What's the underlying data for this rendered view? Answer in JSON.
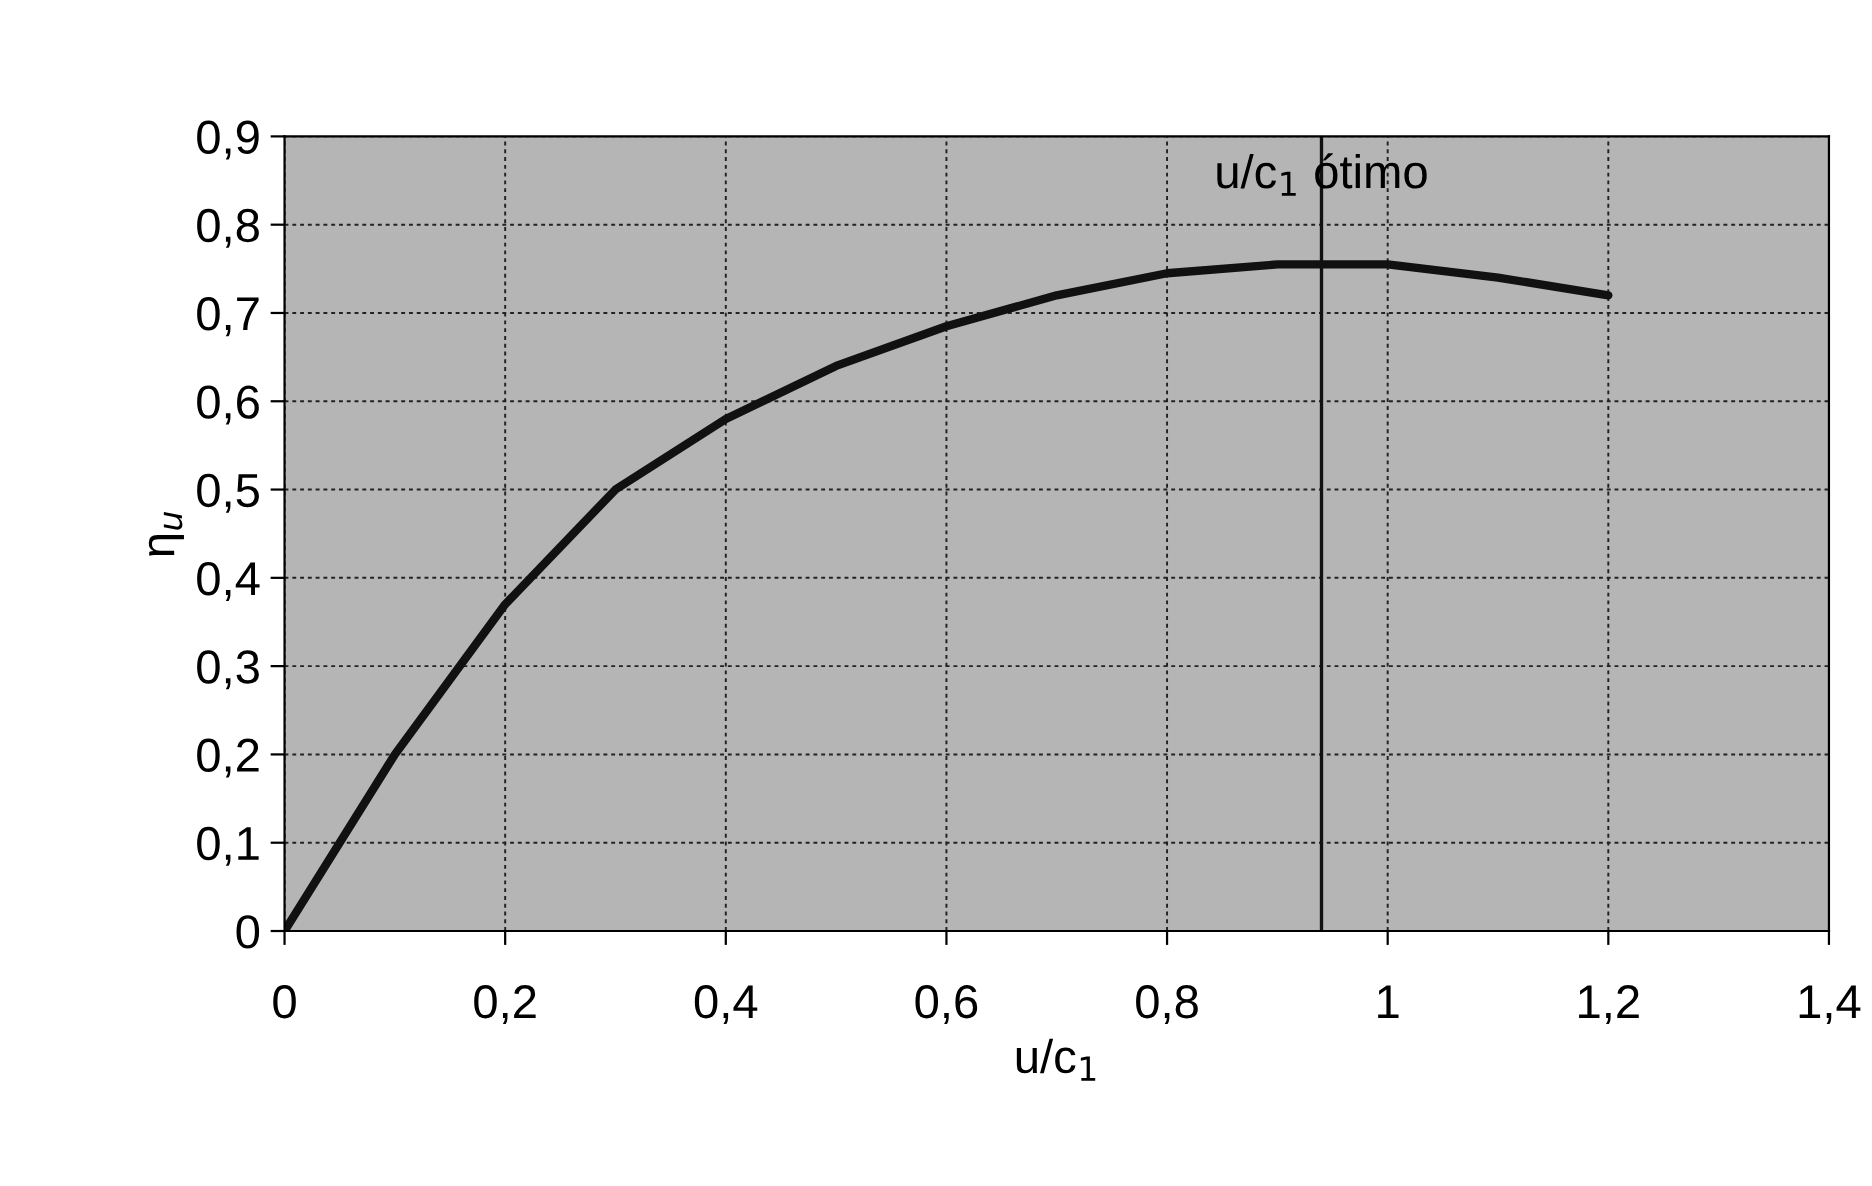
{
  "chart_data": {
    "type": "line",
    "xlabel": "u/c$_{1}$",
    "ylabel": "η$_{u}$",
    "x": [
      0,
      0.1,
      0.2,
      0.3,
      0.4,
      0.5,
      0.6,
      0.7,
      0.8,
      0.9,
      1.0,
      1.1,
      1.2
    ],
    "series": [
      {
        "color": "#111111",
        "values": [
          0,
          0.2,
          0.37,
          0.5,
          0.58,
          0.64,
          0.685,
          0.72,
          0.745,
          0.755,
          0.755,
          0.74,
          0.72
        ]
      }
    ],
    "xlim": [
      0,
      1.4
    ],
    "xticks": [
      0,
      {
        "value": 0.2,
        "label": "0,2"
      },
      {
        "value": 0.4,
        "label": "0,4"
      },
      {
        "value": 0.6,
        "label": "0,6"
      },
      {
        "value": 0.8,
        "label": "0,8"
      },
      1,
      {
        "value": 1.2,
        "label": "1,2"
      },
      {
        "value": 1.4,
        "label": "1,4"
      }
    ],
    "ylim": [
      0,
      0.9
    ],
    "yticks": [
      0,
      {
        "value": 0.1,
        "label": "0,1"
      },
      {
        "value": 0.2,
        "label": "0,2"
      },
      {
        "value": 0.3,
        "label": "0,3"
      },
      {
        "value": 0.4,
        "label": "0,4"
      },
      {
        "value": 0.5,
        "label": "0,5"
      },
      {
        "value": 0.6,
        "label": "0,6"
      },
      {
        "value": 0.7,
        "label": "0,7"
      },
      {
        "value": 0.8,
        "label": "0,8"
      },
      {
        "value": 0.9,
        "label": "0,9"
      }
    ],
    "ref_lines": [
      {
        "axis": "x",
        "value": 0.94,
        "label": "u/c$_{1}$ ótimo",
        "color": "#111111"
      }
    ],
    "grid": true,
    "marker": "none",
    "line_style": "solid"
  }
}
